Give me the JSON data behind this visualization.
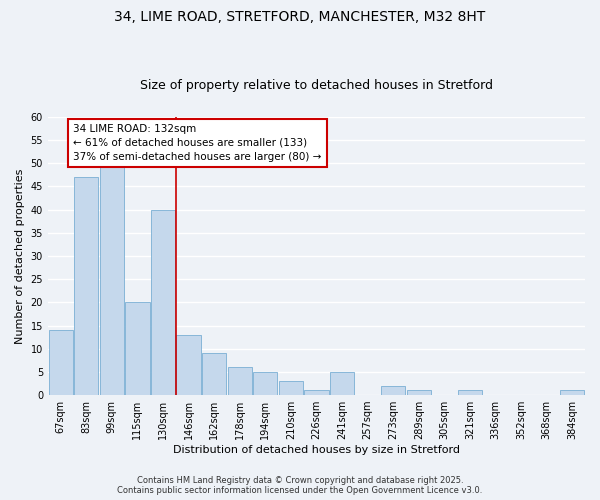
{
  "title": "34, LIME ROAD, STRETFORD, MANCHESTER, M32 8HT",
  "subtitle": "Size of property relative to detached houses in Stretford",
  "xlabel": "Distribution of detached houses by size in Stretford",
  "ylabel": "Number of detached properties",
  "bin_labels": [
    "67sqm",
    "83sqm",
    "99sqm",
    "115sqm",
    "130sqm",
    "146sqm",
    "162sqm",
    "178sqm",
    "194sqm",
    "210sqm",
    "226sqm",
    "241sqm",
    "257sqm",
    "273sqm",
    "289sqm",
    "305sqm",
    "321sqm",
    "336sqm",
    "352sqm",
    "368sqm",
    "384sqm"
  ],
  "bar_values": [
    14,
    47,
    50,
    20,
    40,
    13,
    9,
    6,
    5,
    3,
    1,
    5,
    0,
    2,
    1,
    0,
    1,
    0,
    0,
    0,
    1
  ],
  "bar_color": "#c5d8ec",
  "bar_edge_color": "#7aafd4",
  "vline_x_bin": 4.5,
  "vline_color": "#cc0000",
  "annotation_title": "34 LIME ROAD: 132sqm",
  "annotation_line1": "← 61% of detached houses are smaller (133)",
  "annotation_line2": "37% of semi-detached houses are larger (80) →",
  "annotation_box_color": "#ffffff",
  "annotation_box_edge_color": "#cc0000",
  "ylim": [
    0,
    60
  ],
  "yticks": [
    0,
    5,
    10,
    15,
    20,
    25,
    30,
    35,
    40,
    45,
    50,
    55,
    60
  ],
  "footnote1": "Contains HM Land Registry data © Crown copyright and database right 2025.",
  "footnote2": "Contains public sector information licensed under the Open Government Licence v3.0.",
  "bg_color": "#eef2f7",
  "grid_color": "#ffffff",
  "title_fontsize": 10,
  "subtitle_fontsize": 9,
  "ylabel_fontsize": 8,
  "xlabel_fontsize": 8,
  "tick_fontsize": 7,
  "annot_fontsize": 7.5,
  "footnote_fontsize": 6
}
